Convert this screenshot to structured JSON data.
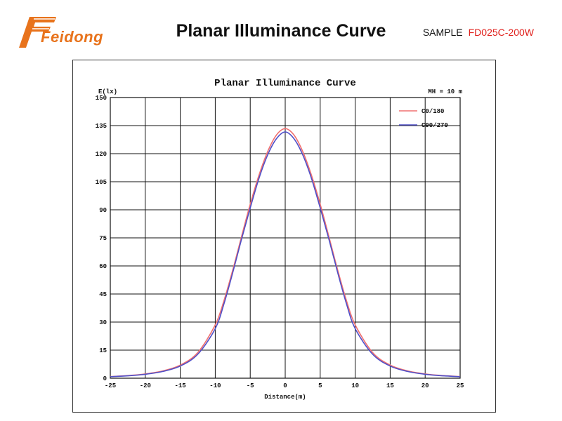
{
  "header": {
    "logo_text": "Feidong",
    "title": "Planar Illuminance Curve",
    "sample_label": "SAMPLE",
    "sample_code": "FD025C-200W"
  },
  "colors": {
    "brand_orange": "#e8731c",
    "sample_code_red": "#e0201c",
    "series_c0": "#f07070",
    "series_c90": "#5050c8",
    "grid": "#111111"
  },
  "chart_data": {
    "type": "line",
    "title": "Planar Illuminance Curve",
    "annotation": "MH = 10 m",
    "ylabel": "E(lx)",
    "xlabel": "Distance(m)",
    "xlim": [
      -25,
      25
    ],
    "ylim": [
      0,
      150
    ],
    "xticks": [
      -25,
      -20,
      -15,
      -10,
      -5,
      0,
      5,
      10,
      15,
      20,
      25
    ],
    "yticks": [
      0,
      15,
      30,
      45,
      60,
      75,
      90,
      105,
      120,
      135,
      150
    ],
    "grid": true,
    "legend_position": "top-right",
    "series": [
      {
        "name": "C0/180",
        "color": "#f07070",
        "x": [
          -25,
          -22.5,
          -20,
          -17.5,
          -15,
          -12.5,
          -10,
          -8.75,
          -7.5,
          -6.25,
          -5,
          -3.75,
          -2.5,
          -1.25,
          0,
          1.25,
          2.5,
          3.75,
          5,
          6.25,
          7.5,
          8.75,
          10,
          12.5,
          15,
          17.5,
          20,
          22.5,
          25
        ],
        "y": [
          0.9,
          1.4,
          2.3,
          3.9,
          7,
          13.7,
          28.5,
          41.5,
          57.8,
          75.6,
          93,
          108.5,
          121.2,
          130,
          133.4,
          130,
          121.2,
          108.5,
          93,
          75.6,
          57.8,
          41.5,
          28.5,
          13.7,
          7,
          3.9,
          2.3,
          1.4,
          0.9
        ]
      },
      {
        "name": "C90/270",
        "color": "#5050c8",
        "x": [
          -25,
          -22.5,
          -20,
          -17.5,
          -15,
          -12.5,
          -10,
          -8.75,
          -7.5,
          -6.25,
          -5,
          -3.75,
          -2.5,
          -1.25,
          0,
          1.25,
          2.5,
          3.75,
          5,
          6.25,
          7.5,
          8.75,
          10,
          12.5,
          15,
          17.5,
          20,
          22.5,
          25
        ],
        "y": [
          0.8,
          1.3,
          2.1,
          3.6,
          6.5,
          12.8,
          26.5,
          39.8,
          56.4,
          74.2,
          91,
          106.8,
          119.4,
          128,
          131.6,
          128,
          119.4,
          106.8,
          91,
          74.2,
          56.4,
          39.8,
          26.5,
          12.8,
          6.5,
          3.6,
          2.1,
          1.3,
          0.8
        ]
      }
    ]
  }
}
